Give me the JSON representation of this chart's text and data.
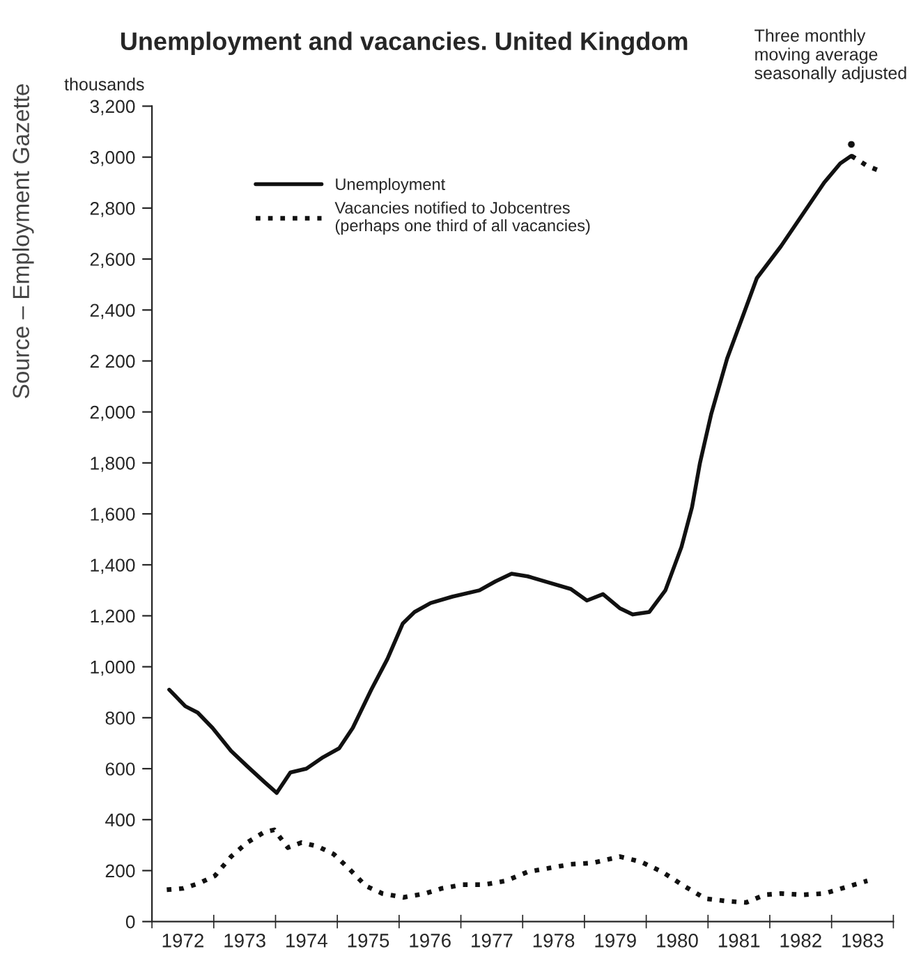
{
  "chart_data": {
    "type": "line",
    "title": "Unemployment and vacancies. United Kingdom",
    "ylabel": "thousands",
    "annotations": [
      "Three monthly\nmoving average\nseasonally adjusted",
      "Source – Employment Gazette"
    ],
    "xlim": [
      1972,
      1984
    ],
    "ylim": [
      0,
      3200
    ],
    "xticks": [
      {
        "value": 1972,
        "label": null
      },
      {
        "value": 1972.5,
        "label": "1972"
      },
      {
        "value": 1973,
        "label": null
      },
      {
        "value": 1973.5,
        "label": "1973"
      },
      {
        "value": 1974,
        "label": null
      },
      {
        "value": 1974.5,
        "label": "1974"
      },
      {
        "value": 1975,
        "label": null
      },
      {
        "value": 1975.5,
        "label": "1975"
      },
      {
        "value": 1976,
        "label": null
      },
      {
        "value": 1976.5,
        "label": "1976"
      },
      {
        "value": 1977,
        "label": null
      },
      {
        "value": 1977.5,
        "label": "1977"
      },
      {
        "value": 1978,
        "label": null
      },
      {
        "value": 1978.5,
        "label": "1978"
      },
      {
        "value": 1979,
        "label": null
      },
      {
        "value": 1979.5,
        "label": "1979"
      },
      {
        "value": 1980,
        "label": null
      },
      {
        "value": 1980.5,
        "label": "1980"
      },
      {
        "value": 1981,
        "label": null
      },
      {
        "value": 1981.5,
        "label": "1981"
      },
      {
        "value": 1982,
        "label": null
      },
      {
        "value": 1982.5,
        "label": "1982"
      },
      {
        "value": 1983,
        "label": null
      },
      {
        "value": 1983.5,
        "label": "1983"
      },
      {
        "value": 1984,
        "label": null
      }
    ],
    "yticks": [
      0,
      200,
      400,
      600,
      800,
      {
        "value": 1000,
        "label": "1,000"
      },
      {
        "value": 1200,
        "label": "1,200"
      },
      {
        "value": 1400,
        "label": "1,400"
      },
      {
        "value": 1600,
        "label": "1,600"
      },
      {
        "value": 1800,
        "label": "1,800"
      },
      {
        "value": 2000,
        "label": "2,000"
      },
      {
        "value": 2200,
        "label": "2 200"
      },
      {
        "value": 2400,
        "label": "2,400"
      },
      {
        "value": 2600,
        "label": "2,600"
      },
      {
        "value": 2800,
        "label": "2,800"
      },
      {
        "value": 3000,
        "label": "3,000"
      },
      {
        "value": 3200,
        "label": "3,200"
      }
    ],
    "grid": false,
    "legend": "top left",
    "series": [
      {
        "name": "Unemployment",
        "color": "#111111",
        "line_style": "solid",
        "x": [
          1972.28,
          1972.54,
          1972.74,
          1972.98,
          1973.28,
          1973.54,
          1973.81,
          1974.02,
          1974.24,
          1974.5,
          1974.77,
          1975.03,
          1975.25,
          1975.55,
          1975.81,
          1976.06,
          1976.25,
          1976.51,
          1976.86,
          1977.3,
          1977.56,
          1977.82,
          1978.08,
          1978.43,
          1978.78,
          1979.04,
          1979.3,
          1979.57,
          1979.78,
          1980.05,
          1980.31,
          1980.57,
          1980.74,
          1980.87,
          1981.05,
          1981.31,
          1981.57,
          1981.79,
          1982.18,
          1982.53,
          1982.88,
          1983.14,
          1983.32
        ],
        "values": [
          910,
          845,
          820,
          760,
          670,
          610,
          550,
          505,
          585,
          600,
          645,
          680,
          760,
          910,
          1030,
          1170,
          1215,
          1250,
          1275,
          1300,
          1335,
          1365,
          1355,
          1330,
          1305,
          1260,
          1285,
          1230,
          1205,
          1215,
          1300,
          1470,
          1625,
          1800,
          1990,
          2210,
          2380,
          2525,
          2650,
          2775,
          2900,
          2975,
          3005
        ]
      },
      {
        "color": "#111111",
        "line_style": "dotted",
        "x": [
          1983.32,
          1983.58,
          1983.84
        ],
        "values": [
          3005,
          2965,
          2940
        ]
      },
      {
        "type": "scatter",
        "color": "#111111",
        "marker": "circle",
        "x": [
          1983.32
        ],
        "values": [
          3050
        ]
      },
      {
        "name": "Vacancies notified to Jobcentres\n(perhaps one third of all vacancies)",
        "color": "#111111",
        "line_style": "dotted",
        "x": [
          1972.24,
          1972.5,
          1972.76,
          1973.02,
          1973.28,
          1973.54,
          1973.81,
          1973.98,
          1974.2,
          1974.42,
          1974.68,
          1974.94,
          1975.2,
          1975.46,
          1975.73,
          1976.07,
          1976.42,
          1976.69,
          1977.03,
          1977.38,
          1977.73,
          1978.08,
          1978.43,
          1978.78,
          1979.13,
          1979.57,
          1979.91,
          1980.26,
          1980.61,
          1980.96,
          1981.31,
          1981.62,
          1981.92,
          1982.18,
          1982.53,
          1982.88,
          1983.23,
          1983.58
        ],
        "values": [
          125,
          130,
          150,
          180,
          255,
          310,
          350,
          360,
          290,
          310,
          295,
          265,
          205,
          140,
          110,
          95,
          110,
          130,
          145,
          145,
          160,
          195,
          210,
          225,
          230,
          255,
          235,
          195,
          140,
          90,
          80,
          75,
          105,
          110,
          105,
          110,
          135,
          160
        ]
      }
    ]
  }
}
